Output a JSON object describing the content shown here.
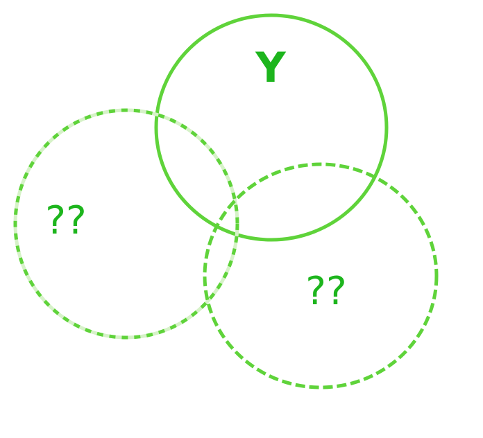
{
  "colors": {
    "stroke": "#5fd33a",
    "label": "#1db51d",
    "background": "#ffffff"
  },
  "circles": [
    {
      "id": "solid",
      "label": "Y",
      "style": "solid"
    },
    {
      "id": "left",
      "label": "??",
      "style": "dotted"
    },
    {
      "id": "right",
      "label": "??",
      "style": "dashed"
    }
  ]
}
